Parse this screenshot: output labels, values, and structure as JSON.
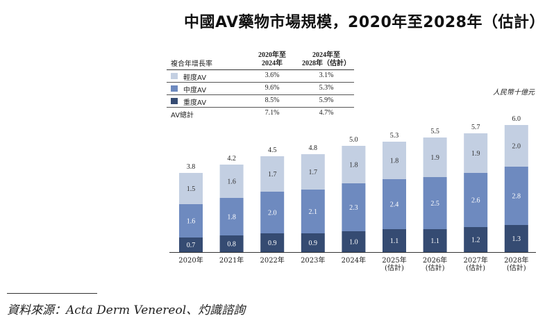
{
  "title": "中國AV藥物市場規模，2020年至2028年（估計）",
  "unit": "人民幣十億元",
  "source": "資料來源：Acta Derm Venereol、灼識諮詢",
  "colors": {
    "mild": "#c3cfe2",
    "moderate": "#6e8abf",
    "severe": "#354b72",
    "axis": "#333333"
  },
  "growth_table": {
    "header": {
      "label": "複合年增長率",
      "col1": [
        "2020年至",
        "2024年"
      ],
      "col2": [
        "2024年至",
        "2028年（估計）"
      ]
    },
    "rows": [
      {
        "label": "輕度AV",
        "c1": "3.6%",
        "c2": "3.1%"
      },
      {
        "label": "中度AV",
        "c1": "9.6%",
        "c2": "5.3%"
      },
      {
        "label": "重度AV",
        "c1": "8.5%",
        "c2": "5.9%"
      },
      {
        "label": "AV總計",
        "c1": "7.1%",
        "c2": "4.7%"
      }
    ]
  },
  "chart_data": {
    "type": "bar",
    "stacked": true,
    "categories": [
      "2020年",
      "2021年",
      "2022年",
      "2023年",
      "2024年",
      "2025年\n(估計)",
      "2026年\n(估計)",
      "2027年\n(估計)",
      "2028年\n(估計)"
    ],
    "series": [
      {
        "name": "重度AV",
        "values": [
          0.7,
          0.8,
          0.9,
          0.9,
          1.0,
          1.1,
          1.1,
          1.2,
          1.3
        ]
      },
      {
        "name": "中度AV",
        "values": [
          1.6,
          1.8,
          2.0,
          2.1,
          2.3,
          2.4,
          2.5,
          2.6,
          2.8
        ]
      },
      {
        "name": "輕度AV",
        "values": [
          1.5,
          1.6,
          1.7,
          1.7,
          1.8,
          1.8,
          1.9,
          1.9,
          2.0
        ]
      }
    ],
    "totals": [
      3.8,
      4.2,
      4.5,
      4.8,
      5.0,
      5.3,
      5.5,
      5.7,
      6.0
    ],
    "ylim": [
      0,
      6.0
    ],
    "legend": "table top-left",
    "grid": false
  }
}
